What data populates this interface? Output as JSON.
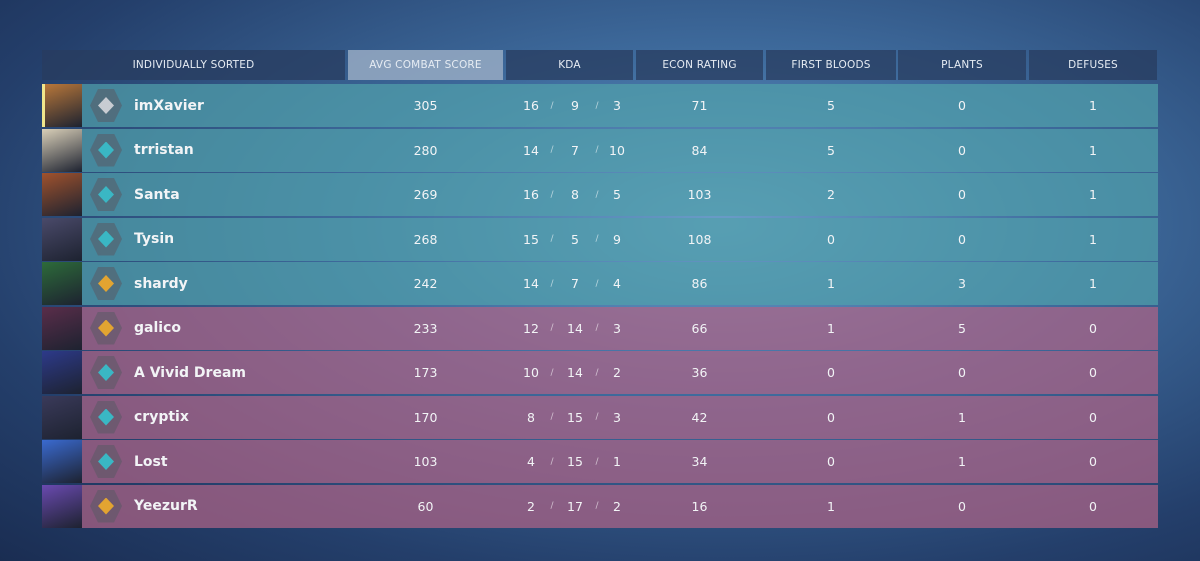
{
  "header": {
    "columns": [
      "INDIVIDUALLY SORTED",
      "AVG COMBAT SCORE",
      "KDA",
      "ECON RATING",
      "FIRST BLOODS",
      "PLANTS",
      "DEFUSES"
    ]
  },
  "kda_separator": "/",
  "teams": [
    {
      "rows": [
        {
          "name": "imXavier",
          "acs": 305,
          "kills": 16,
          "deaths": 9,
          "assists": 3,
          "econ": 71,
          "first_bloods": 5,
          "plants": 0,
          "defuses": 1
        },
        {
          "name": "trristan",
          "acs": 280,
          "kills": 14,
          "deaths": 7,
          "assists": 10,
          "econ": 84,
          "first_bloods": 5,
          "plants": 0,
          "defuses": 1
        },
        {
          "name": "Santa",
          "acs": 269,
          "kills": 16,
          "deaths": 8,
          "assists": 5,
          "econ": 103,
          "first_bloods": 2,
          "plants": 0,
          "defuses": 1
        },
        {
          "name": "Tysin",
          "acs": 268,
          "kills": 15,
          "deaths": 5,
          "assists": 9,
          "econ": 108,
          "first_bloods": 0,
          "plants": 0,
          "defuses": 1
        },
        {
          "name": "shardy",
          "acs": 242,
          "kills": 14,
          "deaths": 7,
          "assists": 4,
          "econ": 86,
          "first_bloods": 1,
          "plants": 3,
          "defuses": 1
        }
      ]
    },
    {
      "rows": [
        {
          "name": "galico",
          "acs": 233,
          "kills": 12,
          "deaths": 14,
          "assists": 3,
          "econ": 66,
          "first_bloods": 1,
          "plants": 5,
          "defuses": 0
        },
        {
          "name": "A Vivid Dream",
          "acs": 173,
          "kills": 10,
          "deaths": 14,
          "assists": 2,
          "econ": 36,
          "first_bloods": 0,
          "plants": 0,
          "defuses": 0
        },
        {
          "name": "cryptix",
          "acs": 170,
          "kills": 8,
          "deaths": 15,
          "assists": 3,
          "econ": 42,
          "first_bloods": 0,
          "plants": 1,
          "defuses": 0
        },
        {
          "name": "Lost",
          "acs": 103,
          "kills": 4,
          "deaths": 15,
          "assists": 1,
          "econ": 34,
          "first_bloods": 0,
          "plants": 1,
          "defuses": 0
        },
        {
          "name": "YeezurR",
          "acs": 60,
          "kills": 2,
          "deaths": 17,
          "assists": 2,
          "econ": 16,
          "first_bloods": 1,
          "plants": 0,
          "defuses": 0
        }
      ]
    }
  ]
}
